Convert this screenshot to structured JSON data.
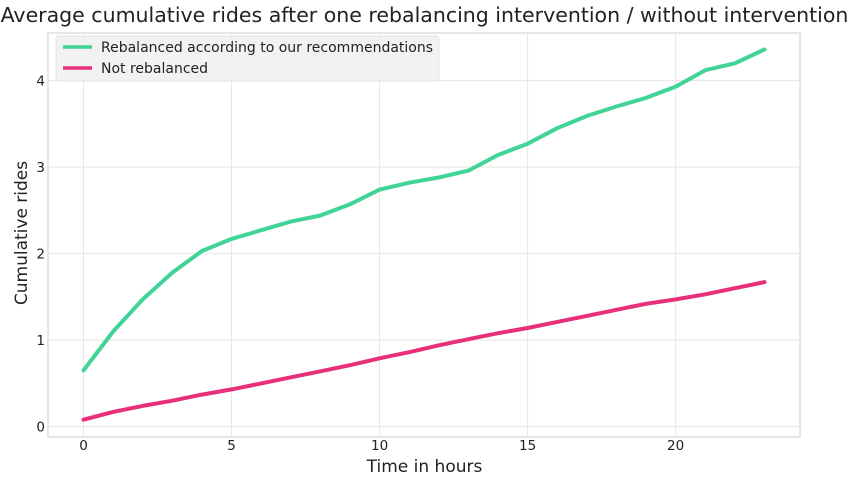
{
  "chart_data": {
    "type": "line",
    "title": "Average cumulative rides after one rebalancing intervention / without intervention",
    "xlabel": "Time in hours",
    "ylabel": "Cumulative rides",
    "xlim": [
      -1.2,
      24.2
    ],
    "ylim": [
      -0.12,
      4.55
    ],
    "x_ticks": [
      0,
      5,
      10,
      15,
      20
    ],
    "y_ticks": [
      0,
      1,
      2,
      3,
      4
    ],
    "grid": true,
    "legend_position": "top-left",
    "x": [
      0,
      1,
      2,
      3,
      4,
      5,
      6,
      7,
      8,
      9,
      10,
      11,
      12,
      13,
      14,
      15,
      16,
      17,
      18,
      19,
      20,
      21,
      22,
      23
    ],
    "series": [
      {
        "name": "Rebalanced according to our recommendations",
        "color": "#40d497",
        "values": [
          0.65,
          1.1,
          1.47,
          1.78,
          2.03,
          2.17,
          2.27,
          2.37,
          2.44,
          2.57,
          2.74,
          2.82,
          2.88,
          2.96,
          3.14,
          3.27,
          3.45,
          3.59,
          3.7,
          3.8,
          3.93,
          4.12,
          4.2,
          4.36
        ]
      },
      {
        "name": "Not rebalanced",
        "color": "#e8307a",
        "values": [
          0.08,
          0.17,
          0.24,
          0.3,
          0.37,
          0.43,
          0.5,
          0.57,
          0.64,
          0.71,
          0.79,
          0.86,
          0.94,
          1.01,
          1.08,
          1.14,
          1.21,
          1.28,
          1.35,
          1.42,
          1.47,
          1.53,
          1.6,
          1.67
        ]
      }
    ]
  }
}
